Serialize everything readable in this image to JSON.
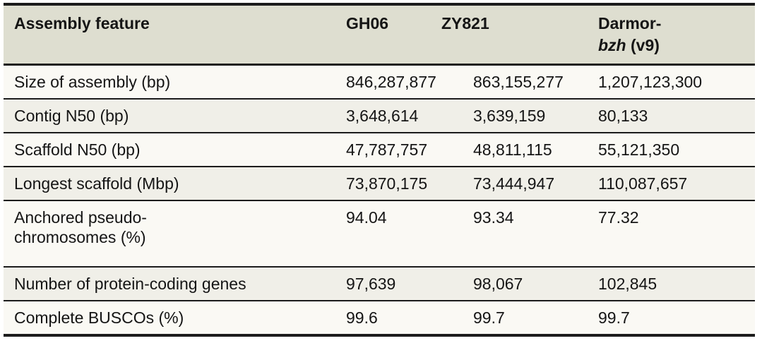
{
  "colors": {
    "header_bg": "#deded0",
    "row_light": "#faf9f4",
    "row_dark": "#f0efe8",
    "border": "#1c1c1c",
    "text": "#151515",
    "page_bg": "#ffffff"
  },
  "table": {
    "header": {
      "feature": "Assembly feature",
      "gh06": "GH06",
      "zy821": "ZY821",
      "darmor": {
        "line1": "Darmor-",
        "italic": "bzh",
        "suffix": " (v9)"
      }
    },
    "rows": [
      {
        "feature": "Size of assembly (bp)",
        "gh06": "846,287,877",
        "zy821": "863,155,277",
        "darmor": "1,207,123,300"
      },
      {
        "feature": "Contig N50 (bp)",
        "gh06": "3,648,614",
        "zy821": "3,639,159",
        "darmor": "80,133"
      },
      {
        "feature": "Scaffold N50 (bp)",
        "gh06": "47,787,757",
        "zy821": "48,811,115",
        "darmor": "55,121,350"
      },
      {
        "feature": "Longest scaffold (Mbp)",
        "gh06": "73,870,175",
        "zy821": "73,444,947",
        "darmor": "110,087,657"
      },
      {
        "feature": [
          "Anchored pseudo-",
          "chromosomes (%)"
        ],
        "gh06": "94.04",
        "zy821": "93.34",
        "darmor": "77.32"
      },
      {
        "feature": "Number of protein-coding genes",
        "gh06": "97,639",
        "zy821": "98,067",
        "darmor": "102,845"
      },
      {
        "feature": "Complete BUSCOs (%)",
        "gh06": "99.6",
        "zy821": "99.7",
        "darmor": "99.7"
      }
    ]
  }
}
